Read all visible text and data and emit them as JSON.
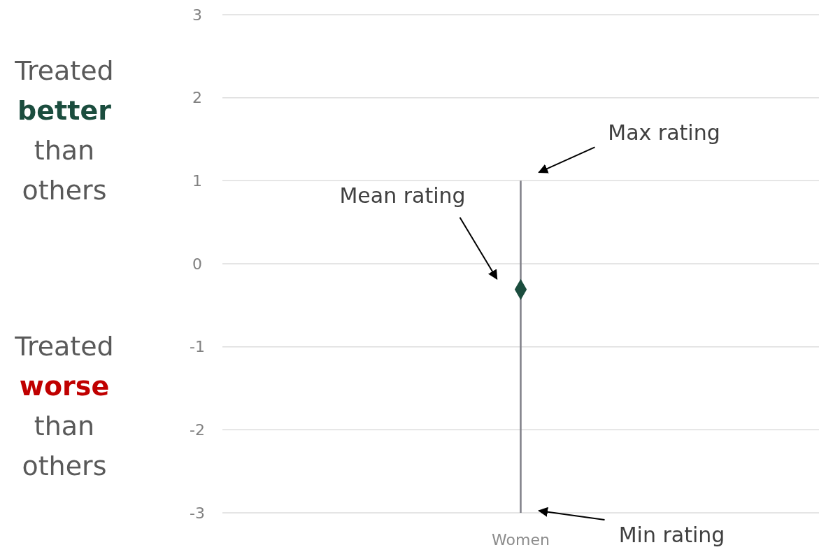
{
  "chart_data": {
    "type": "scatter",
    "categories": [
      "Women"
    ],
    "series": [
      {
        "values": [
          -0.31
        ],
        "errors": [
          [
            -3,
            1
          ]
        ],
        "color": "#1b4d3e",
        "marker": "diamond"
      }
    ],
    "ylim": [
      -3,
      3
    ],
    "yticks": [
      -3,
      -2,
      -1,
      0,
      1,
      2,
      3
    ],
    "grid": "y",
    "annotations": [
      "Treated better than others",
      "Treated worse than others",
      "Max rating",
      "Mean rating",
      "Min rating"
    ]
  }
}
